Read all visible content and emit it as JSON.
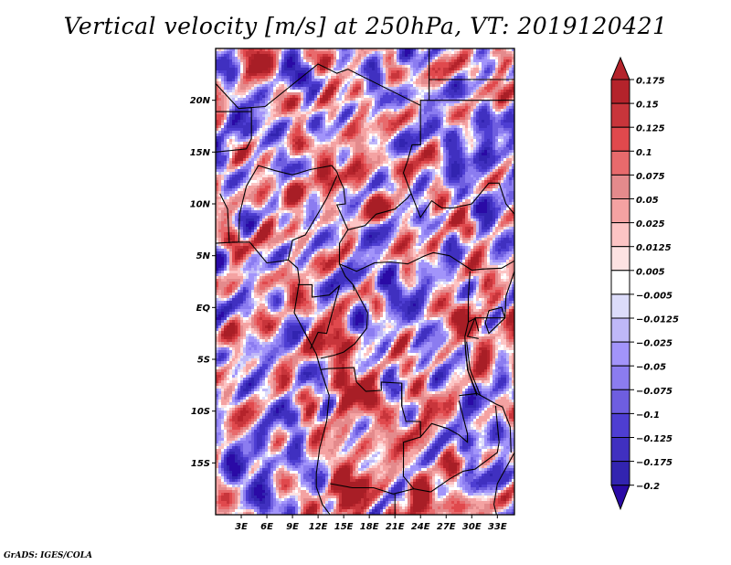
{
  "title": "Vertical velocity [m/s] at 250hPa, VT: 2019120421",
  "credit": "GrADS: IGES/COLA",
  "chart_data": {
    "type": "heatmap",
    "title": "Vertical velocity [m/s] at 250hPa, VT: 2019120421",
    "variable": "Vertical velocity",
    "units": "m/s",
    "level": "250hPa",
    "valid_time": "2019120421",
    "xlabel": "",
    "ylabel": "",
    "lon_range": [
      0,
      35
    ],
    "lat_range": [
      -20,
      25
    ],
    "x_ticks": [
      {
        "value": 3,
        "label": "3E"
      },
      {
        "value": 6,
        "label": "6E"
      },
      {
        "value": 9,
        "label": "9E"
      },
      {
        "value": 12,
        "label": "12E"
      },
      {
        "value": 15,
        "label": "15E"
      },
      {
        "value": 18,
        "label": "18E"
      },
      {
        "value": 21,
        "label": "21E"
      },
      {
        "value": 24,
        "label": "24E"
      },
      {
        "value": 27,
        "label": "27E"
      },
      {
        "value": 30,
        "label": "30E"
      },
      {
        "value": 33,
        "label": "33E"
      }
    ],
    "y_ticks": [
      {
        "value": 20,
        "label": "20N"
      },
      {
        "value": 15,
        "label": "15N"
      },
      {
        "value": 10,
        "label": "10N"
      },
      {
        "value": 5,
        "label": "5N"
      },
      {
        "value": 0,
        "label": "EQ"
      },
      {
        "value": -5,
        "label": "5S"
      },
      {
        "value": -10,
        "label": "10S"
      },
      {
        "value": -15,
        "label": "15S"
      }
    ],
    "colorbar": {
      "orientation": "vertical",
      "placement": "right",
      "levels": [
        {
          "label": "0.175",
          "color": "#b4232b"
        },
        {
          "label": "0.15",
          "color": "#c8353b"
        },
        {
          "label": "0.125",
          "color": "#e0494d"
        },
        {
          "label": "0.1",
          "color": "#e86a6c"
        },
        {
          "label": "0.075",
          "color": "#e48a8c"
        },
        {
          "label": "0.05",
          "color": "#f4a2a2"
        },
        {
          "label": "0.025",
          "color": "#fcc4c4"
        },
        {
          "label": "0.0125",
          "color": "#fde2e2"
        },
        {
          "label": "0.005",
          "color": "#ffffff"
        },
        {
          "label": "-0.005",
          "color": "#dcdcfa"
        },
        {
          "label": "-0.0125",
          "color": "#bfb8f8"
        },
        {
          "label": "-0.025",
          "color": "#a294fa"
        },
        {
          "label": "-0.05",
          "color": "#8b7cf0"
        },
        {
          "label": "-0.075",
          "color": "#6e5ee0"
        },
        {
          "label": "-0.1",
          "color": "#4e3ed2"
        },
        {
          "label": "-0.125",
          "color": "#4030c0"
        },
        {
          "label": "-0.175",
          "color": "#3224b0"
        },
        {
          "label": "-0.2",
          "color": "#2a1aa0"
        }
      ],
      "top_arrow_color": "#b4232b",
      "bottom_arrow_color": "#2a0aa6"
    },
    "field_summary": {
      "description": "Mottled field of positive (red, ascent) and negative (blue, descent) vertical velocity over Central/West Africa; strongest ascent (dark red) over Angola (~13-17E, 8-20S) and central Sahel (~12-18E, 10-14N); descent dominant over South Atlantic (SW) and Sudan/Libya region (NE)",
      "hotspots": [
        {
          "lon": 15.5,
          "lat": -9,
          "value": 0.15
        },
        {
          "lon": 16,
          "lat": -16,
          "value": 0.15
        },
        {
          "lon": 15.5,
          "lat": -19.5,
          "value": 0.175
        },
        {
          "lon": 23.5,
          "lat": -19,
          "value": 0.125
        },
        {
          "lon": 15,
          "lat": 12.5,
          "value": 0.1
        },
        {
          "lon": 10,
          "lat": 12,
          "value": 0.1
        },
        {
          "lon": 29.5,
          "lat": -1.5,
          "value": 0.125
        },
        {
          "lon": 14,
          "lat": -3,
          "value": 0.1
        },
        {
          "lon": 5,
          "lat": 23.5,
          "value": 0.1
        },
        {
          "lon": 24,
          "lat": -10,
          "value": 0.075
        },
        {
          "lon": 3,
          "lat": -2,
          "value": 0.05
        }
      ],
      "coldspots": [
        {
          "lon": 4,
          "lat": -14,
          "value": -0.1
        },
        {
          "lon": 6,
          "lat": -17,
          "value": -0.125
        },
        {
          "lon": 30,
          "lat": 17,
          "value": -0.1
        },
        {
          "lon": 33,
          "lat": 14,
          "value": -0.1
        },
        {
          "lon": 1,
          "lat": 17,
          "value": -0.1
        },
        {
          "lon": 18,
          "lat": 1,
          "value": -0.075
        },
        {
          "lon": 25,
          "lat": 2,
          "value": -0.075
        },
        {
          "lon": 31,
          "lat": -13,
          "value": -0.075
        },
        {
          "lon": 9,
          "lat": 23,
          "value": -0.1
        }
      ]
    }
  }
}
